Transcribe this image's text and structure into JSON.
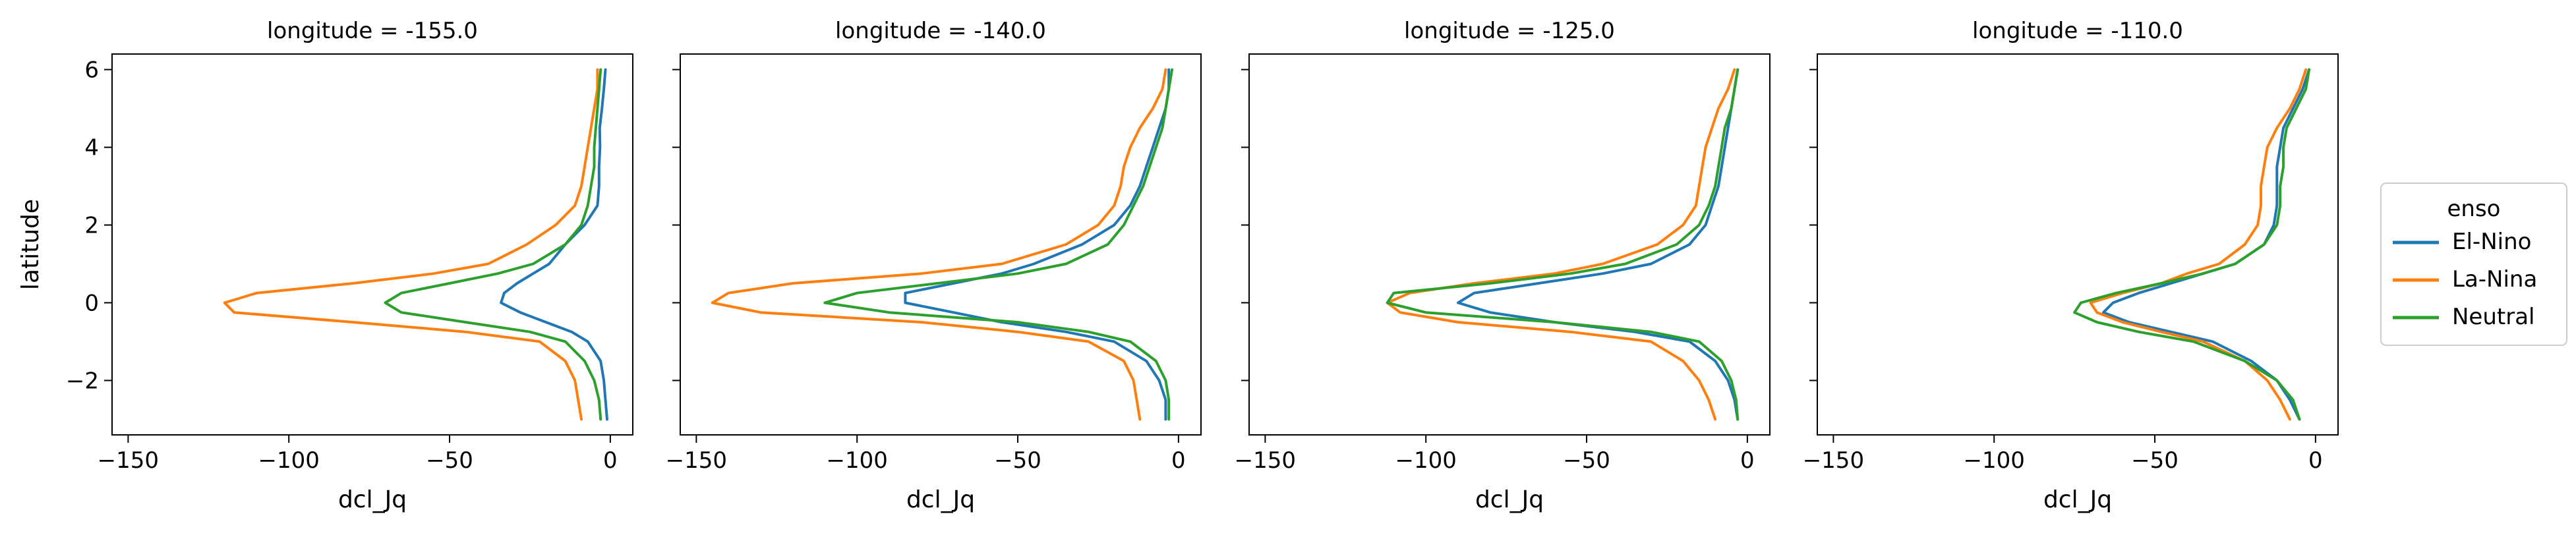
{
  "figure": {
    "xlabel": "dcl_Jq",
    "ylabel": "latitude",
    "legend": {
      "title": "enso",
      "placement": "right",
      "entries": [
        {
          "name": "El-Nino",
          "color": "#1f77b4"
        },
        {
          "name": "La-Nina",
          "color": "#ff7f0e"
        },
        {
          "name": "Neutral",
          "color": "#2ca02c"
        }
      ]
    }
  },
  "chart_data": [
    {
      "type": "line",
      "title": "longitude = -155.0",
      "xlabel": "dcl_Jq",
      "ylabel": "latitude",
      "xlim": [
        -155,
        7
      ],
      "ylim": [
        -3.4,
        6.4
      ],
      "xticks": [
        -150,
        -100,
        -50,
        0
      ],
      "yticks": [
        -2,
        0,
        2,
        4,
        6
      ],
      "ytick_labels_visible": true,
      "y": [
        -3,
        -2.5,
        -2,
        -1.5,
        -1,
        -0.75,
        -0.5,
        -0.25,
        0,
        0.25,
        0.5,
        0.75,
        1,
        1.5,
        2,
        2.5,
        3,
        3.5,
        4,
        4.5,
        5,
        5.5,
        6
      ],
      "series": [
        {
          "name": "El-Nino",
          "x": [
            -1,
            -1.5,
            -2,
            -3,
            -7,
            -12,
            -20,
            -28,
            -34,
            -33,
            -29,
            -24,
            -19,
            -14,
            -8,
            -4,
            -3.5,
            -3.5,
            -3.2,
            -3.3,
            -2.6,
            -2,
            -1.5
          ]
        },
        {
          "name": "La-Nina",
          "x": [
            -9,
            -10,
            -11,
            -14,
            -22,
            -45,
            -80,
            -117,
            -120,
            -110,
            -80,
            -55,
            -38,
            -26,
            -17,
            -11,
            -9,
            -8,
            -7,
            -6,
            -5,
            -4,
            -4
          ]
        },
        {
          "name": "Neutral",
          "x": [
            -3,
            -3.5,
            -5,
            -8,
            -14,
            -25,
            -45,
            -65,
            -70,
            -65,
            -50,
            -35,
            -24,
            -14,
            -9,
            -7,
            -6,
            -5,
            -5,
            -4.5,
            -4,
            -3.5,
            -3
          ]
        }
      ]
    },
    {
      "type": "line",
      "title": "longitude = -140.0",
      "xlabel": "dcl_Jq",
      "ylabel": "",
      "xlim": [
        -155,
        7
      ],
      "ylim": [
        -3.4,
        6.4
      ],
      "xticks": [
        -150,
        -100,
        -50,
        0
      ],
      "yticks": [
        -2,
        0,
        2,
        4,
        6
      ],
      "ytick_labels_visible": false,
      "y": [
        -3,
        -2.5,
        -2,
        -1.5,
        -1,
        -0.75,
        -0.5,
        -0.25,
        0,
        0.25,
        0.5,
        0.75,
        1,
        1.5,
        2,
        2.5,
        3,
        3.5,
        4,
        4.5,
        5,
        5.5,
        6
      ],
      "series": [
        {
          "name": "El-Nino",
          "x": [
            -4,
            -4,
            -6,
            -10,
            -20,
            -35,
            -55,
            -70,
            -85,
            -85,
            -70,
            -55,
            -45,
            -30,
            -20,
            -15,
            -12,
            -10,
            -8,
            -6,
            -4,
            -3,
            -3
          ]
        },
        {
          "name": "La-Nina",
          "x": [
            -12,
            -13,
            -14,
            -17,
            -28,
            -50,
            -80,
            -130,
            -145,
            -140,
            -120,
            -80,
            -55,
            -35,
            -25,
            -20,
            -18,
            -17,
            -15,
            -12,
            -8,
            -5,
            -4
          ]
        },
        {
          "name": "Neutral",
          "x": [
            -3,
            -3,
            -4,
            -7,
            -15,
            -28,
            -50,
            -90,
            -110,
            -100,
            -75,
            -50,
            -35,
            -22,
            -17,
            -14,
            -11,
            -9,
            -7,
            -5,
            -4,
            -3,
            -2
          ]
        }
      ]
    },
    {
      "type": "line",
      "title": "longitude = -125.0",
      "xlabel": "dcl_Jq",
      "ylabel": "",
      "xlim": [
        -155,
        7
      ],
      "ylim": [
        -3.4,
        6.4
      ],
      "xticks": [
        -150,
        -100,
        -50,
        0
      ],
      "yticks": [
        -2,
        0,
        2,
        4,
        6
      ],
      "ytick_labels_visible": false,
      "y": [
        -3,
        -2.5,
        -2,
        -1.5,
        -1,
        -0.75,
        -0.5,
        -0.25,
        0,
        0.25,
        0.5,
        0.75,
        1,
        1.5,
        2,
        2.5,
        3,
        3.5,
        4,
        4.5,
        5,
        5.5,
        6
      ],
      "series": [
        {
          "name": "El-Nino",
          "x": [
            -3,
            -4,
            -6,
            -10,
            -18,
            -35,
            -60,
            -80,
            -90,
            -85,
            -65,
            -45,
            -30,
            -18,
            -13,
            -11,
            -9,
            -8,
            -7,
            -6,
            -5,
            -4,
            -3
          ]
        },
        {
          "name": "La-Nina",
          "x": [
            -10,
            -12,
            -15,
            -20,
            -30,
            -55,
            -90,
            -108,
            -112,
            -105,
            -85,
            -60,
            -45,
            -28,
            -20,
            -16,
            -15,
            -14,
            -13,
            -11,
            -9,
            -6,
            -4
          ]
        },
        {
          "name": "Neutral",
          "x": [
            -3,
            -3.5,
            -5,
            -8,
            -15,
            -30,
            -60,
            -100,
            -112,
            -110,
            -80,
            -55,
            -38,
            -22,
            -15,
            -12,
            -10,
            -9,
            -8,
            -7,
            -5,
            -4,
            -3
          ]
        }
      ]
    },
    {
      "type": "line",
      "title": "longitude = -110.0",
      "xlabel": "dcl_Jq",
      "ylabel": "",
      "xlim": [
        -155,
        7
      ],
      "ylim": [
        -3.4,
        6.4
      ],
      "xticks": [
        -150,
        -100,
        -50,
        0
      ],
      "yticks": [
        -2,
        0,
        2,
        4,
        6
      ],
      "ytick_labels_visible": false,
      "y": [
        -3,
        -2.5,
        -2,
        -1.5,
        -1,
        -0.75,
        -0.5,
        -0.25,
        0,
        0.25,
        0.5,
        0.75,
        1,
        1.5,
        2,
        2.5,
        3,
        3.5,
        4,
        4.5,
        5,
        5.5,
        6
      ],
      "series": [
        {
          "name": "El-Nino",
          "x": [
            -5,
            -8,
            -12,
            -20,
            -32,
            -45,
            -58,
            -66,
            -63,
            -55,
            -45,
            -35,
            -25,
            -16,
            -13,
            -12,
            -12,
            -12,
            -11,
            -10,
            -7,
            -4,
            -2
          ]
        },
        {
          "name": "La-Nina",
          "x": [
            -8,
            -11,
            -15,
            -22,
            -35,
            -48,
            -60,
            -68,
            -70,
            -60,
            -48,
            -40,
            -30,
            -22,
            -18,
            -17,
            -17,
            -16,
            -15,
            -12,
            -8,
            -5,
            -3
          ]
        },
        {
          "name": "Neutral",
          "x": [
            -5,
            -7,
            -12,
            -22,
            -38,
            -55,
            -68,
            -75,
            -73,
            -62,
            -48,
            -35,
            -25,
            -16,
            -12,
            -11,
            -11,
            -10,
            -10,
            -9,
            -6,
            -3,
            -2
          ]
        }
      ]
    }
  ]
}
